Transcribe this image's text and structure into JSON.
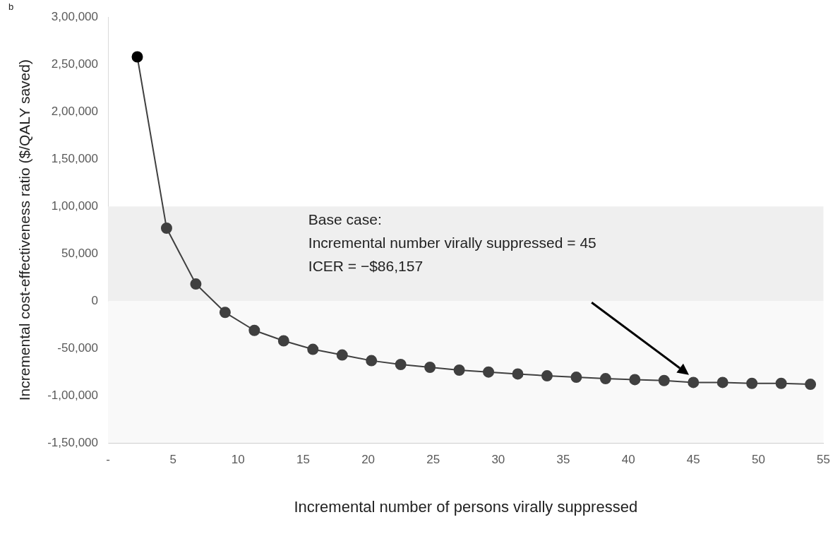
{
  "chart_data": {
    "type": "line",
    "xlabel": "Incremental number of persons virally suppressed",
    "ylabel": "Incremental cost-effectiveness ratio ($/QALY saved)",
    "x": [
      2.25,
      4.5,
      6.75,
      9,
      11.25,
      13.5,
      15.75,
      18,
      20.25,
      22.5,
      24.75,
      27,
      29.25,
      31.5,
      33.75,
      36,
      38.25,
      40.5,
      42.75,
      45,
      47.25,
      49.5,
      51.75,
      54
    ],
    "series": [
      {
        "color": "#404040",
        "colors": [
          "#000000",
          "#404040",
          "#404040",
          "#404040",
          "#404040",
          "#404040",
          "#404040",
          "#404040",
          "#404040",
          "#404040",
          "#404040",
          "#404040",
          "#404040",
          "#404040",
          "#404040",
          "#404040",
          "#404040",
          "#404040",
          "#404040",
          "#404040",
          "#404040",
          "#404040",
          "#404040",
          "#404040"
        ],
        "values": [
          258000,
          77000,
          18000,
          -12000,
          -31000,
          -42000,
          -51000,
          -57000,
          -63000,
          -67000,
          -70000,
          -73000,
          -75000,
          -77000,
          -79000,
          -80500,
          -82000,
          -83000,
          -84000,
          -86000,
          -86000,
          -87000,
          -87000,
          -88000
        ]
      }
    ],
    "xlim": [
      0,
      55
    ],
    "xticks": [
      {
        "value": 0,
        "label": "-"
      },
      5,
      10,
      15,
      20,
      25,
      30,
      35,
      40,
      45,
      50,
      55
    ],
    "ylim": [
      -150000,
      300000
    ],
    "yticks": [
      {
        "value": -150000,
        "label": "-1,50,000"
      },
      {
        "value": -100000,
        "label": "-1,00,000"
      },
      {
        "value": -50000,
        "label": "-50,000"
      },
      0,
      {
        "value": 50000,
        "label": "50,000"
      },
      {
        "value": 100000,
        "label": "1,00,000"
      },
      {
        "value": 150000,
        "label": "1,50,000"
      },
      {
        "value": 200000,
        "label": "2,00,000"
      },
      {
        "value": 250000,
        "label": "2,50,000"
      },
      {
        "value": 300000,
        "label": "3,00,000"
      }
    ],
    "bands": [
      {
        "axis": "y",
        "from": 0,
        "to": 100000,
        "color": "#efefef"
      },
      {
        "axis": "y",
        "from": -150000,
        "to": 0,
        "color": "#f9f9f9"
      }
    ],
    "annotations": [
      "b",
      "Base case:\nIncremental number virally suppressed = 45\nICER = −$86,157"
    ],
    "marker": "circle",
    "line_style": "solid",
    "grid": false,
    "legend": false
  }
}
